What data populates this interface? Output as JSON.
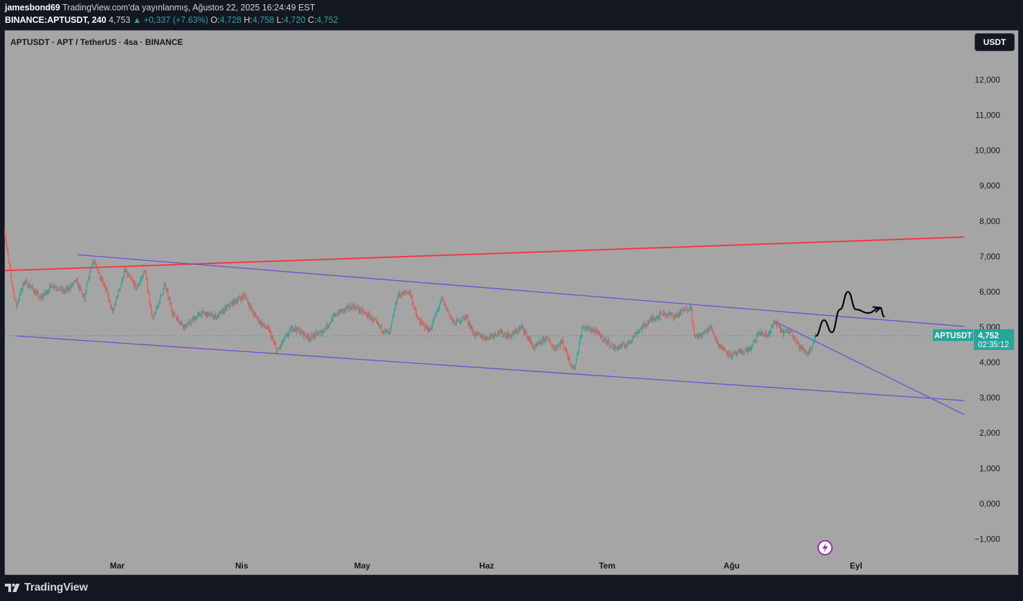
{
  "header": {
    "author": "jamesbond69",
    "published": "TradingView.com'da yayınlanmış, Ağustos 22, 2025 16:24:49 EST",
    "symbol_line": "BINANCE:APTUSDT, 240",
    "last": "4,753",
    "change": "▲ +0,337 (+7.63%)",
    "o_label": "O:",
    "o": "4,728",
    "h_label": "H:",
    "h": "4,758",
    "l_label": "L:",
    "l": "4,720",
    "c_label": "C:",
    "c": "4,752"
  },
  "chart_title": "APTUSDT · APT / TetherUS · 4sa · BINANCE",
  "currency_button": "USDT",
  "price_label": {
    "symbol": "APTUSDT",
    "price": "4,752",
    "countdown": "02:35:12"
  },
  "footer": {
    "brand": "TradingView"
  },
  "colors": {
    "background": "#a5a5a5",
    "up": "#26a69a",
    "down": "#ef5350",
    "red_line": "#f23645",
    "channel": "#6a45d6",
    "drawing": "#000000"
  },
  "chart_data": {
    "type": "candlestick",
    "ylim": [
      -1.5,
      13.4
    ],
    "y_ticks": [
      12,
      11,
      10,
      9,
      8,
      7,
      6,
      5,
      4,
      3,
      2,
      1,
      0,
      -1
    ],
    "y_tick_labels": [
      "12,000",
      "11,000",
      "10,000",
      "9,000",
      "8,000",
      "7,000",
      "6,000",
      "5,000",
      "4,000",
      "3,000",
      "2,000",
      "1,000",
      "0,000",
      "−1,000"
    ],
    "x_start": "2025-02-01",
    "x_end": "2025-09-30",
    "x_ticks": [
      {
        "label": "Mar",
        "date": "2025-03-01"
      },
      {
        "label": "Nis",
        "date": "2025-04-01"
      },
      {
        "label": "May",
        "date": "2025-05-01"
      },
      {
        "label": "Haz",
        "date": "2025-06-01"
      },
      {
        "label": "Tem",
        "date": "2025-07-01"
      },
      {
        "label": "Ağu",
        "date": "2025-08-01"
      },
      {
        "label": "Eyl",
        "date": "2025-09-01"
      }
    ],
    "last_price": 4.752,
    "price_path": [
      [
        "2025-02-01",
        7.75
      ],
      [
        "2025-02-03",
        6.2
      ],
      [
        "2025-02-04",
        5.6
      ],
      [
        "2025-02-06",
        6.3
      ],
      [
        "2025-02-08",
        6.1
      ],
      [
        "2025-02-10",
        5.8
      ],
      [
        "2025-02-13",
        6.2
      ],
      [
        "2025-02-16",
        6.0
      ],
      [
        "2025-02-19",
        6.3
      ],
      [
        "2025-02-21",
        5.8
      ],
      [
        "2025-02-23",
        6.9
      ],
      [
        "2025-02-26",
        6.2
      ],
      [
        "2025-02-28",
        5.4
      ],
      [
        "2025-03-03",
        6.6
      ],
      [
        "2025-03-06",
        6.1
      ],
      [
        "2025-03-08",
        6.6
      ],
      [
        "2025-03-10",
        5.2
      ],
      [
        "2025-03-13",
        6.2
      ],
      [
        "2025-03-15",
        5.4
      ],
      [
        "2025-03-18",
        5.0
      ],
      [
        "2025-03-22",
        5.4
      ],
      [
        "2025-03-26",
        5.3
      ],
      [
        "2025-03-30",
        5.7
      ],
      [
        "2025-04-02",
        5.9
      ],
      [
        "2025-04-04",
        5.4
      ],
      [
        "2025-04-06",
        5.1
      ],
      [
        "2025-04-08",
        4.9
      ],
      [
        "2025-04-10",
        4.3
      ],
      [
        "2025-04-12",
        4.7
      ],
      [
        "2025-04-14",
        5.0
      ],
      [
        "2025-04-18",
        4.7
      ],
      [
        "2025-04-21",
        4.85
      ],
      [
        "2025-04-25",
        5.4
      ],
      [
        "2025-04-29",
        5.6
      ],
      [
        "2025-05-03",
        5.3
      ],
      [
        "2025-05-06",
        4.95
      ],
      [
        "2025-05-08",
        4.8
      ],
      [
        "2025-05-10",
        5.9
      ],
      [
        "2025-05-13",
        6.0
      ],
      [
        "2025-05-15",
        5.2
      ],
      [
        "2025-05-18",
        4.9
      ],
      [
        "2025-05-21",
        5.8
      ],
      [
        "2025-05-24",
        5.1
      ],
      [
        "2025-05-27",
        5.3
      ],
      [
        "2025-05-29",
        4.8
      ],
      [
        "2025-06-01",
        4.7
      ],
      [
        "2025-06-04",
        4.85
      ],
      [
        "2025-06-07",
        4.75
      ],
      [
        "2025-06-10",
        5.0
      ],
      [
        "2025-06-13",
        4.4
      ],
      [
        "2025-06-16",
        4.7
      ],
      [
        "2025-06-18",
        4.4
      ],
      [
        "2025-06-20",
        4.6
      ],
      [
        "2025-06-22",
        4.0
      ],
      [
        "2025-06-23",
        3.8
      ],
      [
        "2025-06-25",
        5.0
      ],
      [
        "2025-06-28",
        4.9
      ],
      [
        "2025-07-01",
        4.6
      ],
      [
        "2025-07-03",
        4.4
      ],
      [
        "2025-07-06",
        4.5
      ],
      [
        "2025-07-09",
        4.9
      ],
      [
        "2025-07-12",
        5.2
      ],
      [
        "2025-07-15",
        5.4
      ],
      [
        "2025-07-18",
        5.3
      ],
      [
        "2025-07-22",
        5.6
      ],
      [
        "2025-07-23",
        4.7
      ],
      [
        "2025-07-25",
        4.8
      ],
      [
        "2025-07-27",
        5.0
      ],
      [
        "2025-07-29",
        4.5
      ],
      [
        "2025-08-01",
        4.2
      ],
      [
        "2025-08-04",
        4.3
      ],
      [
        "2025-08-06",
        4.4
      ],
      [
        "2025-08-08",
        4.85
      ],
      [
        "2025-08-10",
        4.75
      ],
      [
        "2025-08-12",
        5.15
      ],
      [
        "2025-08-14",
        4.85
      ],
      [
        "2025-08-16",
        4.9
      ],
      [
        "2025-08-18",
        4.45
      ],
      [
        "2025-08-20",
        4.25
      ],
      [
        "2025-08-21",
        4.4
      ],
      [
        "2025-08-22",
        4.75
      ]
    ],
    "lines": [
      {
        "name": "resistance-red",
        "color": "#f23645",
        "from": [
          "2025-02-01",
          6.6
        ],
        "to": [
          "2025-09-28",
          7.55
        ]
      },
      {
        "name": "channel-upper",
        "color": "#6a45d6",
        "from": [
          "2025-02-19",
          7.05
        ],
        "to": [
          "2025-09-28",
          5.02
        ]
      },
      {
        "name": "channel-lower",
        "color": "#6a45d6",
        "from": [
          "2025-02-04",
          4.75
        ],
        "to": [
          "2025-09-28",
          2.92
        ]
      },
      {
        "name": "short-downtrend",
        "color": "#6a45d6",
        "from": [
          "2025-08-12",
          5.15
        ],
        "to": [
          "2025-09-28",
          2.52
        ]
      }
    ],
    "projection": [
      [
        "2025-08-22",
        4.75
      ],
      [
        "2025-08-24",
        5.2
      ],
      [
        "2025-08-26",
        4.85
      ],
      [
        "2025-08-28",
        5.5
      ],
      [
        "2025-08-30",
        6.0
      ],
      [
        "2025-09-01",
        5.5
      ],
      [
        "2025-09-04",
        5.4
      ],
      [
        "2025-09-07",
        5.55
      ],
      [
        "2025-09-08",
        5.3
      ]
    ]
  }
}
